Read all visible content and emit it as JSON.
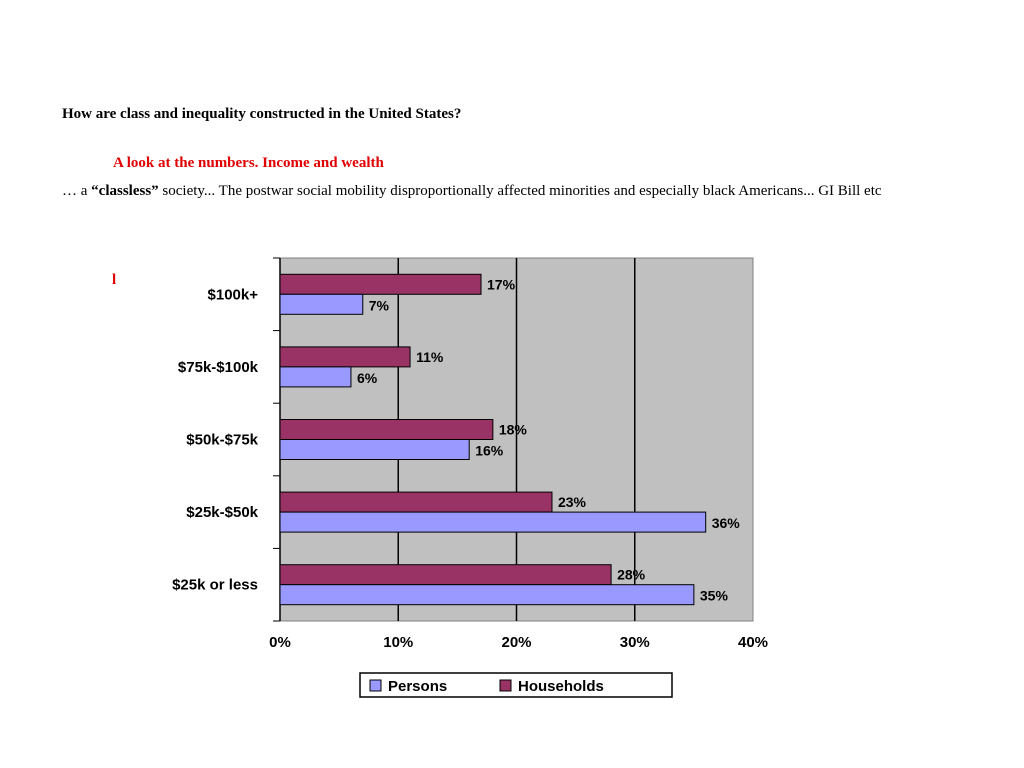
{
  "heading": "How are class and inequality constructed in the United States?",
  "subheading": "A look at the numbers. Income and wealth",
  "paragraph": {
    "prefix": "… a ",
    "emphasis": "“classless”",
    "rest": " society... The postwar social mobility disproportionally affected minorities and especially black Americans... GI Bill etc"
  },
  "stray_mark": "l",
  "colors": {
    "households": "#993366",
    "persons": "#9999ff",
    "plot_bg": "#c0c0c0",
    "accent_red": "#e00000"
  },
  "chart_data": {
    "type": "bar",
    "orientation": "horizontal",
    "categories": [
      "$100k+",
      "$75k-$100k",
      "$50k-$75k",
      "$25k-$50k",
      "$25k or less"
    ],
    "series": [
      {
        "name": "Households",
        "values": [
          17,
          11,
          18,
          23,
          28
        ],
        "labels": [
          "17%",
          "11%",
          "18%",
          "23%",
          "28%"
        ]
      },
      {
        "name": "Persons",
        "values": [
          7,
          6,
          16,
          36,
          35
        ],
        "labels": [
          "7%",
          "6%",
          "16%",
          "36%",
          "35%"
        ]
      }
    ],
    "xlim": [
      0,
      40
    ],
    "xticks": [
      0,
      10,
      20,
      30,
      40
    ],
    "xtick_labels": [
      "0%",
      "10%",
      "20%",
      "30%",
      "40%"
    ],
    "legend_order": [
      "Persons",
      "Households"
    ],
    "legend_position": "bottom",
    "grid": true,
    "title": "",
    "xlabel": "",
    "ylabel": ""
  }
}
